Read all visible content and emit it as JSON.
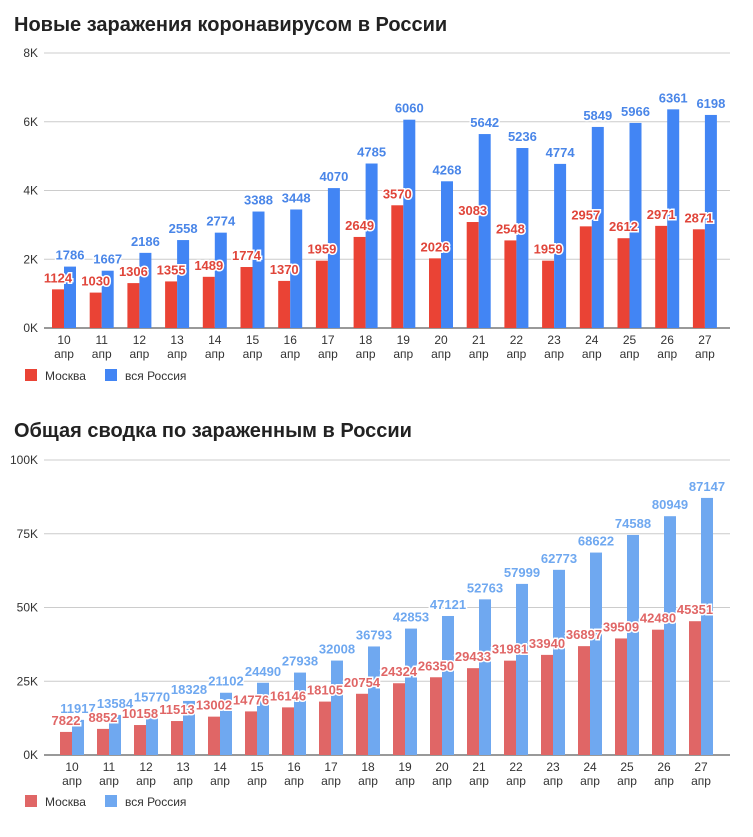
{
  "chart_data": [
    {
      "type": "bar",
      "title": "Новые заражения коронавирусом в России",
      "categories": [
        [
          "10",
          "апр"
        ],
        [
          "11",
          "апр"
        ],
        [
          "12",
          "апр"
        ],
        [
          "13",
          "апр"
        ],
        [
          "14",
          "апр"
        ],
        [
          "15",
          "апр"
        ],
        [
          "16",
          "апр"
        ],
        [
          "17",
          "апр"
        ],
        [
          "18",
          "апр"
        ],
        [
          "19",
          "апр"
        ],
        [
          "20",
          "апр"
        ],
        [
          "21",
          "апр"
        ],
        [
          "22",
          "апр"
        ],
        [
          "23",
          "апр"
        ],
        [
          "24",
          "апр"
        ],
        [
          "25",
          "апр"
        ],
        [
          "26",
          "апр"
        ],
        [
          "27",
          "апр"
        ]
      ],
      "series": [
        {
          "name": "Москва",
          "color": "#ea4335",
          "label_color": "#e0453a",
          "values": [
            1124,
            1030,
            1306,
            1355,
            1489,
            1774,
            1370,
            1959,
            2649,
            3570,
            2026,
            3083,
            2548,
            1959,
            2957,
            2612,
            2971,
            2871
          ]
        },
        {
          "name": "вся Россия",
          "color": "#4285f4",
          "label_color": "#4a86e8",
          "values": [
            1786,
            1667,
            2186,
            2558,
            2774,
            3388,
            3448,
            4070,
            4785,
            6060,
            4268,
            5642,
            5236,
            4774,
            5849,
            5966,
            6361,
            6198
          ]
        }
      ],
      "ylim": [
        0,
        8000
      ],
      "yticks": [
        0,
        2000,
        4000,
        6000,
        8000
      ],
      "ytick_labels": [
        "0K",
        "2K",
        "4K",
        "6K",
        "8K"
      ],
      "grid": true,
      "legend": "bottom-left"
    },
    {
      "type": "bar",
      "title": "Общая сводка по зараженным в России",
      "categories": [
        [
          "10",
          "апр"
        ],
        [
          "11",
          "апр"
        ],
        [
          "12",
          "апр"
        ],
        [
          "13",
          "апр"
        ],
        [
          "14",
          "апр"
        ],
        [
          "15",
          "апр"
        ],
        [
          "16",
          "апр"
        ],
        [
          "17",
          "апр"
        ],
        [
          "18",
          "апр"
        ],
        [
          "19",
          "апр"
        ],
        [
          "20",
          "апр"
        ],
        [
          "21",
          "апр"
        ],
        [
          "22",
          "апр"
        ],
        [
          "23",
          "апр"
        ],
        [
          "24",
          "апр"
        ],
        [
          "25",
          "апр"
        ],
        [
          "26",
          "апр"
        ],
        [
          "27",
          "апр"
        ]
      ],
      "series": [
        {
          "name": "Москва",
          "color": "#e06666",
          "label_color": "#e06666",
          "values": [
            7822,
            8852,
            10158,
            11513,
            13002,
            14776,
            16146,
            18105,
            20754,
            24324,
            26350,
            29433,
            31981,
            33940,
            36897,
            39509,
            42480,
            45351
          ]
        },
        {
          "name": "вся Россия",
          "color": "#6fa8f0",
          "label_color": "#6fa8f0",
          "values": [
            11917,
            13584,
            15770,
            18328,
            21102,
            24490,
            27938,
            32008,
            36793,
            42853,
            47121,
            52763,
            57999,
            62773,
            68622,
            74588,
            80949,
            87147
          ]
        }
      ],
      "ylim": [
        0,
        100000
      ],
      "yticks": [
        0,
        25000,
        50000,
        75000,
        100000
      ],
      "ytick_labels": [
        "0K",
        "25K",
        "50K",
        "75K",
        "100K"
      ],
      "grid": true,
      "legend": "bottom-left"
    }
  ]
}
